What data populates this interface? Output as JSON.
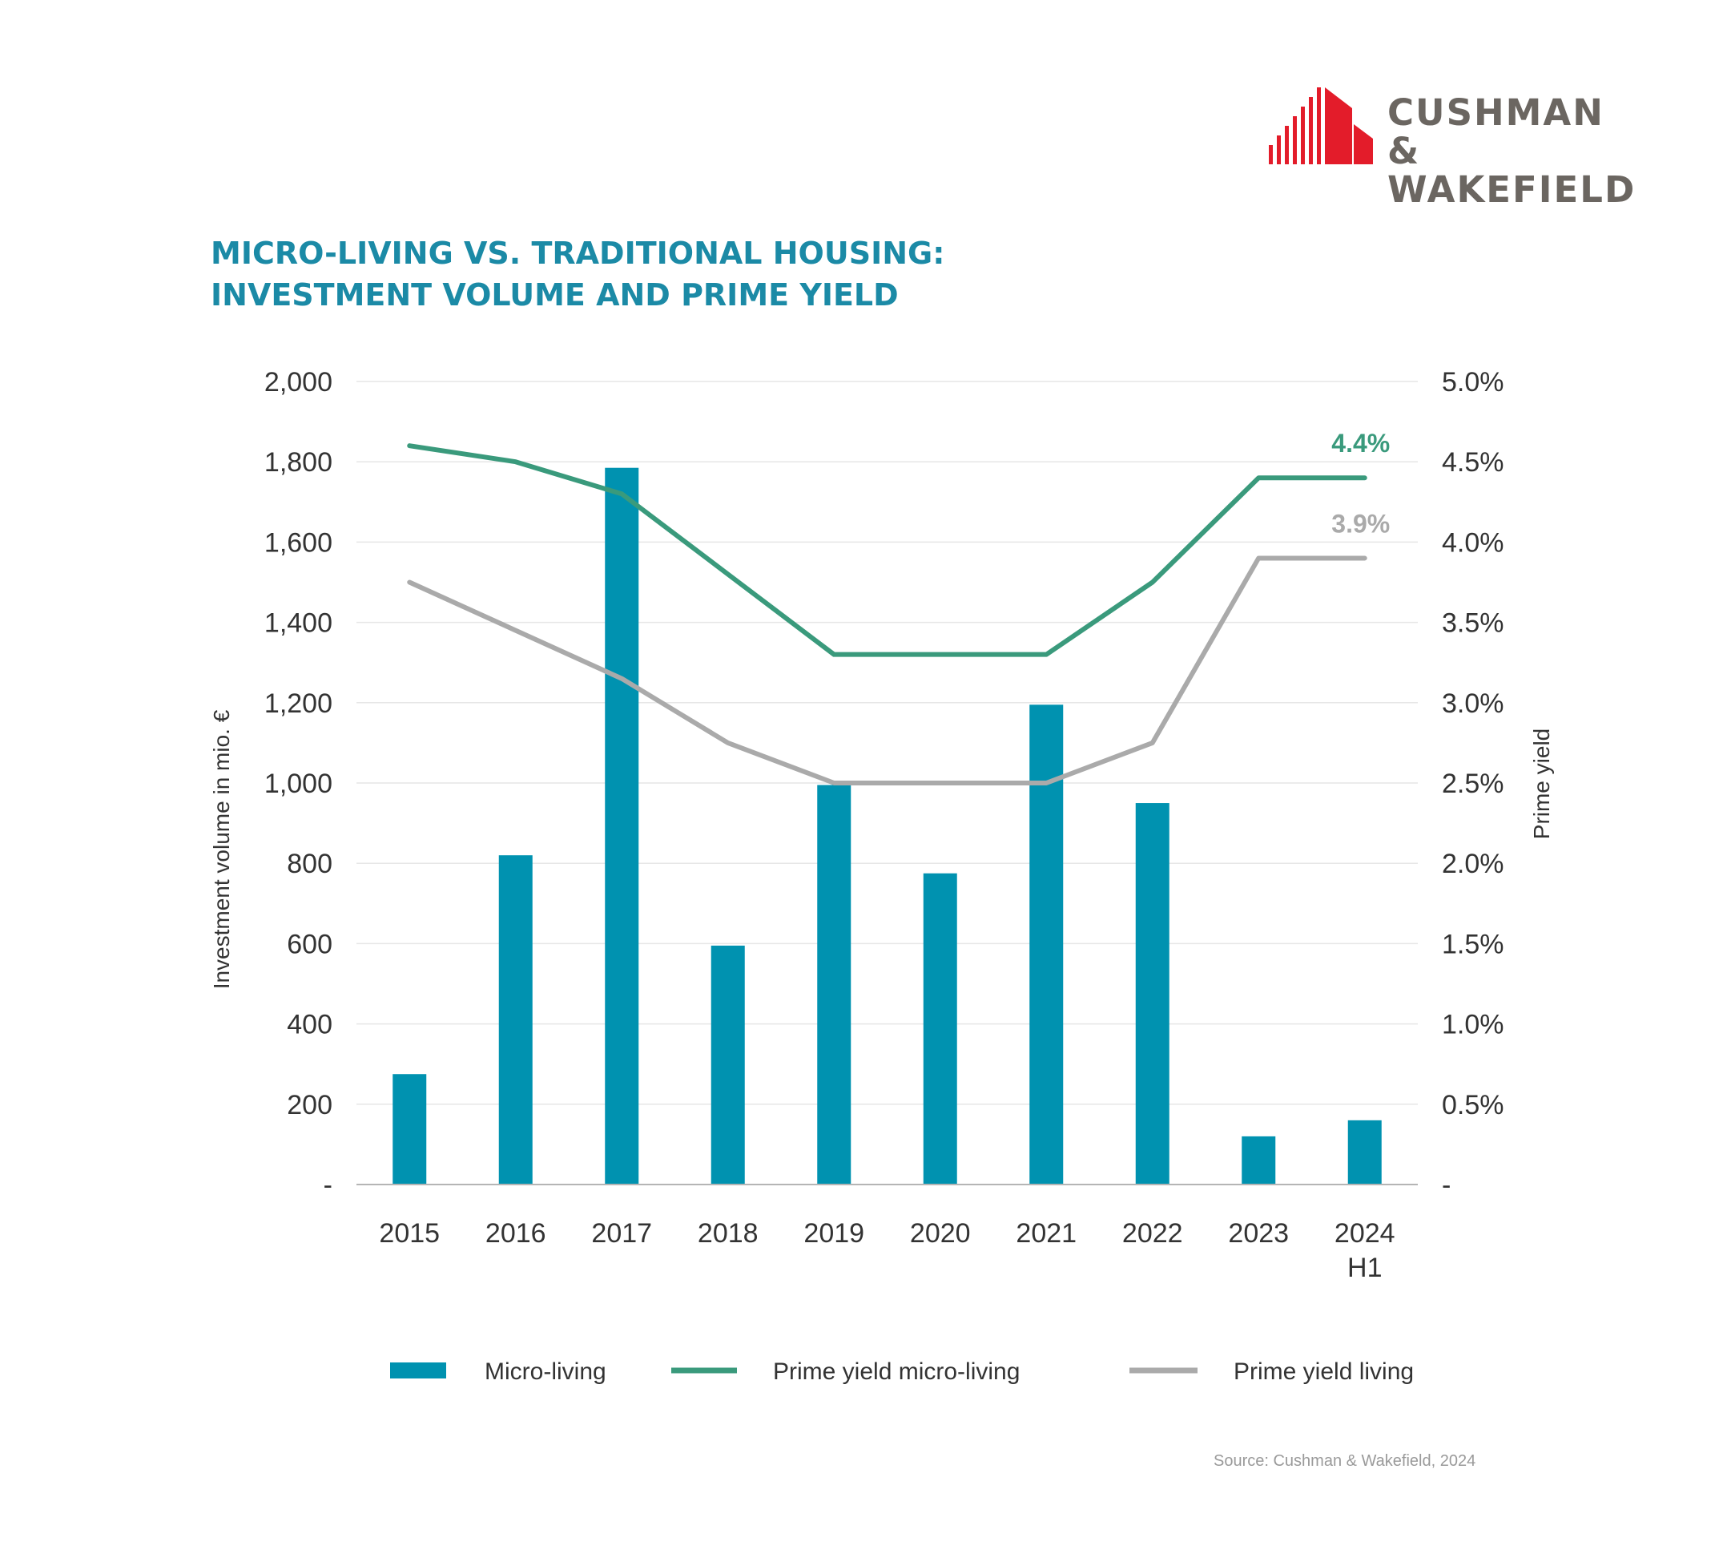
{
  "logo": {
    "line1": "CUSHMAN &",
    "line2": "WAKEFIELD",
    "brand_color": "#e31c2a",
    "text_color": "#6b6661"
  },
  "title": {
    "line1": "MICRO-LIVING VS. TRADITIONAL HOUSING:",
    "line2": "INVESTMENT VOLUME AND PRIME YIELD"
  },
  "source": "Source: Cushman & Wakefield, 2024",
  "colors": {
    "bar": "#0092b0",
    "green": "#3a9a7c",
    "grey": "#aaaaaa",
    "title": "#1b8aa6"
  },
  "chart_data": {
    "type": "bar",
    "title": "MICRO-LIVING VS. TRADITIONAL HOUSING: INVESTMENT VOLUME AND PRIME YIELD",
    "categories": [
      "2015",
      "2016",
      "2017",
      "2018",
      "2019",
      "2020",
      "2021",
      "2022",
      "2023",
      "2024\nH1"
    ],
    "ylabel": "Investment volume in mio. €",
    "y2label": "Prime yield",
    "ylim": [
      0,
      2000
    ],
    "y2lim": [
      0,
      5.0
    ],
    "yticks": [
      0,
      200,
      400,
      600,
      800,
      1000,
      1200,
      1400,
      1600,
      1800,
      2000
    ],
    "yticklabels": [
      "-",
      "200",
      "400",
      "600",
      "800",
      "1,000",
      "1,200",
      "1,400",
      "1,600",
      "1,800",
      "2,000"
    ],
    "y2ticks": [
      0,
      0.5,
      1.0,
      1.5,
      2.0,
      2.5,
      3.0,
      3.5,
      4.0,
      4.5,
      5.0
    ],
    "y2ticklabels": [
      "-",
      "0.5%",
      "1.0%",
      "1.5%",
      "2.0%",
      "2.5%",
      "3.0%",
      "3.5%",
      "4.0%",
      "4.5%",
      "5.0%"
    ],
    "grid": true,
    "legend_position": "bottom",
    "series": [
      {
        "name": "Micro-living",
        "kind": "bar",
        "axis": "left",
        "values": [
          275,
          820,
          1785,
          595,
          995,
          775,
          1195,
          950,
          120,
          160
        ]
      },
      {
        "name": "Prime yield micro-living",
        "kind": "line",
        "axis": "right",
        "values": [
          4.6,
          4.5,
          4.3,
          3.8,
          3.3,
          3.3,
          3.3,
          3.75,
          4.4,
          4.4
        ],
        "end_label": "4.4%"
      },
      {
        "name": "Prime yield living",
        "kind": "line",
        "axis": "right",
        "values": [
          3.75,
          3.45,
          3.15,
          2.75,
          2.5,
          2.5,
          2.5,
          2.75,
          3.9,
          3.9
        ],
        "end_label": "3.9%"
      }
    ]
  }
}
